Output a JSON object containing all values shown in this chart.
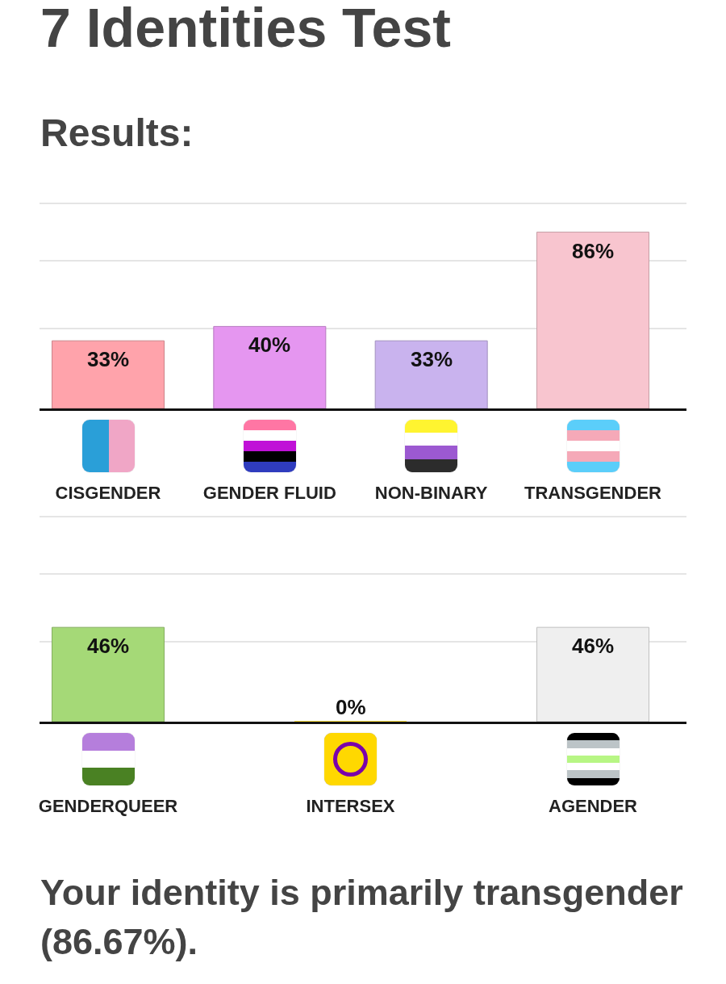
{
  "chart_data": [
    {
      "type": "bar",
      "title": "7 Identities Test",
      "subtitle": "Results:",
      "categories": [
        "CISGENDER",
        "GENDER FLUID",
        "NON-BINARY",
        "TRANSGENDER"
      ],
      "values": [
        33,
        40,
        33,
        86
      ],
      "colors": [
        "#ffa3ab",
        "#e596f0",
        "#c9b3ee",
        "#f8c5cf"
      ],
      "value_labels": [
        "33%",
        "40%",
        "33%",
        "86%"
      ],
      "ylim": [
        0,
        100
      ],
      "yticks": [
        {
          "value": 39,
          "label": null
        },
        {
          "value": 72,
          "label": null
        },
        {
          "value": 100,
          "label": null
        }
      ],
      "grid": "y",
      "tick_labels": "x"
    },
    {
      "type": "bar",
      "categories": [
        "GENDERQUEER",
        "INTERSEX",
        "AGENDER"
      ],
      "values": [
        46,
        0,
        46
      ],
      "colors": [
        "#a5d977",
        "#ffd800",
        "#efefef"
      ],
      "value_labels": [
        "46%",
        "0%",
        "46%"
      ],
      "ylim": [
        0,
        100
      ],
      "yticks": [
        {
          "value": 39,
          "label": null
        },
        {
          "value": 72,
          "label": null
        },
        {
          "value": 100,
          "label": null
        }
      ],
      "grid": "y",
      "tick_labels": "x",
      "annotations": [
        "Your identity is primarily transgender (86.67%)."
      ]
    }
  ]
}
